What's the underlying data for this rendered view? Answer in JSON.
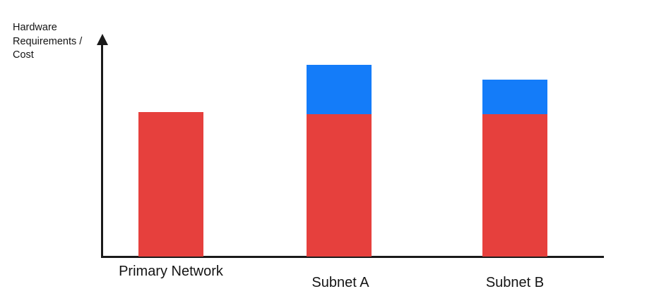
{
  "chart_data": {
    "type": "bar",
    "stacked": true,
    "title": "",
    "y_axis_label": "Hardware\nRequirements /\nCost",
    "xlabel": "",
    "categories": [
      "Primary Network",
      "Subnet A",
      "Subnet B"
    ],
    "series": [
      {
        "name": "red",
        "color": "#E6403D",
        "values": [
          67,
          66,
          66
        ]
      },
      {
        "name": "blue",
        "color": "#147CF9",
        "values": [
          0,
          23,
          16
        ]
      }
    ],
    "ylim": [
      0,
      100
    ],
    "units": "relative (no numeric scale or ticks shown)",
    "legend": "none",
    "grid": false,
    "axis_color": "#1A1A1A"
  }
}
